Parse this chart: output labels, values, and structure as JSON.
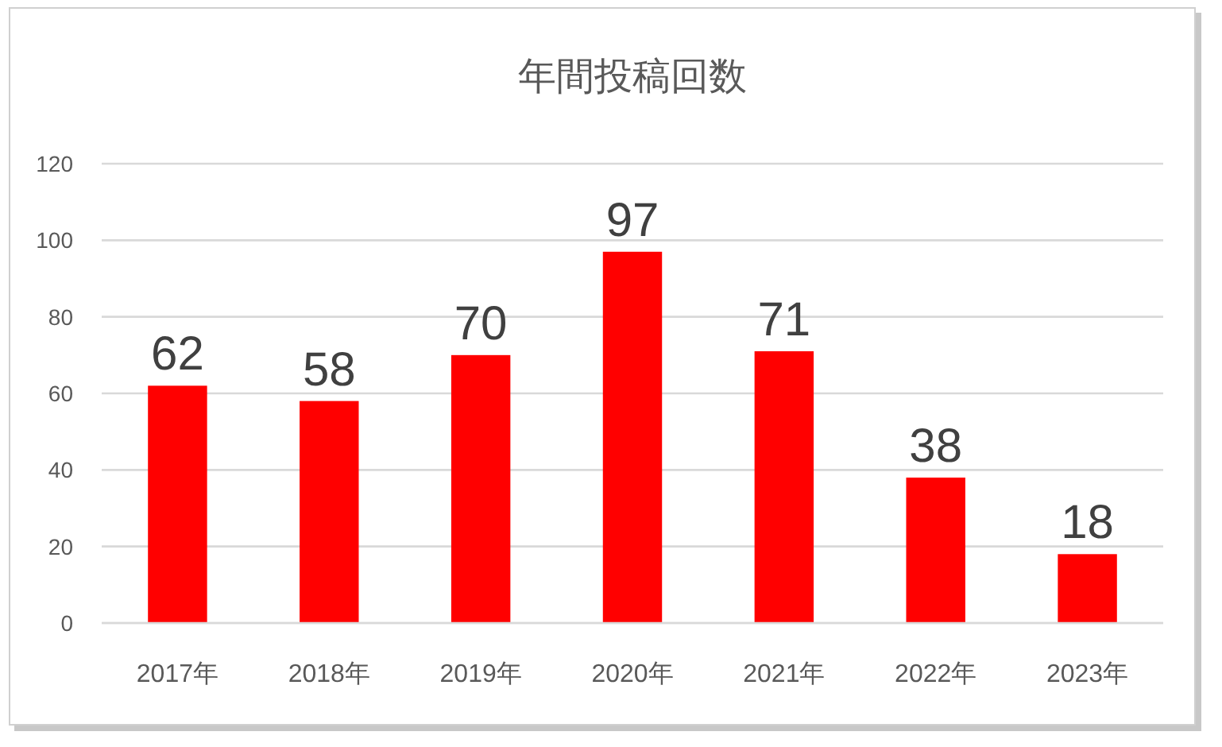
{
  "chart_data": {
    "type": "bar",
    "title": "年間投稿回数",
    "categories": [
      "2017年",
      "2018年",
      "2019年",
      "2020年",
      "2021年",
      "2022年",
      "2023年"
    ],
    "values": [
      62,
      58,
      70,
      97,
      71,
      38,
      18
    ],
    "color": "#ff0000",
    "ylim": [
      0,
      120
    ],
    "yticks": [
      0,
      20,
      40,
      60,
      80,
      100,
      120
    ],
    "grid": "y",
    "data_labels": true
  }
}
